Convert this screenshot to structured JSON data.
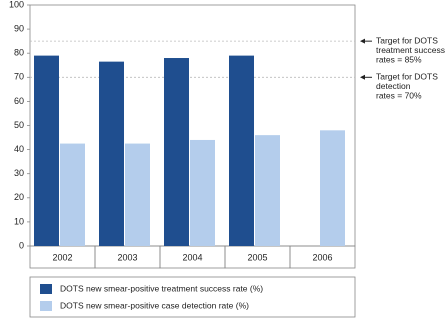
{
  "chart_data": {
    "type": "bar",
    "categories": [
      "2002",
      "2003",
      "2004",
      "2005",
      "2006"
    ],
    "series": [
      {
        "name": "DOTS new smear-positive treatment success rate (%)",
        "color": "#1f4e8f",
        "values": [
          79,
          76.5,
          78,
          79,
          null
        ]
      },
      {
        "name": "DOTS new smear-positive case detection rate (%)",
        "color": "#b4cdec",
        "values": [
          42.5,
          42.5,
          44,
          46,
          48
        ]
      }
    ],
    "ylim": [
      0,
      100
    ],
    "yticks": [
      0,
      10,
      20,
      30,
      40,
      50,
      60,
      70,
      80,
      90,
      100
    ],
    "reference_lines": [
      {
        "value": 85,
        "label_lines": [
          "Target for DOTS",
          "treatment success",
          "rates = 85%"
        ]
      },
      {
        "value": 70,
        "label_lines": [
          "Target for DOTS",
          "detection",
          "rates = 70%"
        ]
      }
    ]
  }
}
